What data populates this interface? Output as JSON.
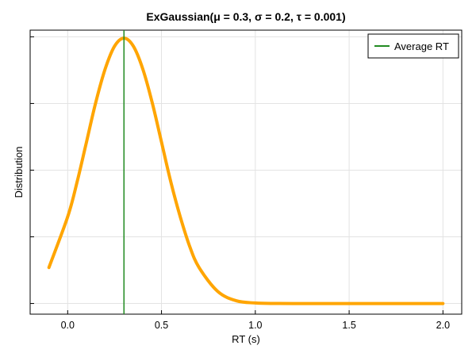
{
  "chart_data": {
    "type": "line",
    "title": "ExGaussian(μ = 0.3, σ =  0.2, τ = 0.001)",
    "xlabel": "RT (s)",
    "ylabel": "Distribution",
    "xlim": [
      -0.2,
      2.1
    ],
    "ylim": [
      -0.08,
      2.05
    ],
    "xticks": [
      0.0,
      0.5,
      1.0,
      1.5,
      2.0
    ],
    "xtick_labels": [
      "0.0",
      "0.5",
      "1.0",
      "1.5",
      "2.0"
    ],
    "ygrid_values": [
      0.0,
      0.5,
      1.0,
      1.5,
      2.0
    ],
    "ytick_labels_shown": false,
    "grid": true,
    "legend_position": "top-right",
    "series": [
      {
        "role": "density",
        "color": "#ffa500",
        "x": [
          -0.1,
          0.0,
          0.05,
          0.1,
          0.15,
          0.2,
          0.25,
          0.3,
          0.35,
          0.4,
          0.45,
          0.5,
          0.55,
          0.6,
          0.65,
          0.7,
          0.8,
          0.9,
          1.0,
          1.1,
          1.2,
          1.5,
          2.0
        ],
        "y": [
          0.27,
          0.65,
          0.91,
          1.21,
          1.51,
          1.76,
          1.93,
          1.99,
          1.93,
          1.76,
          1.51,
          1.21,
          0.91,
          0.65,
          0.43,
          0.27,
          0.09,
          0.02,
          0.004,
          0.0005,
          0.0,
          0.0,
          0.0
        ]
      }
    ],
    "vlines": [
      {
        "name": "Average RT",
        "x": 0.3,
        "color": "#228b22"
      }
    ]
  }
}
